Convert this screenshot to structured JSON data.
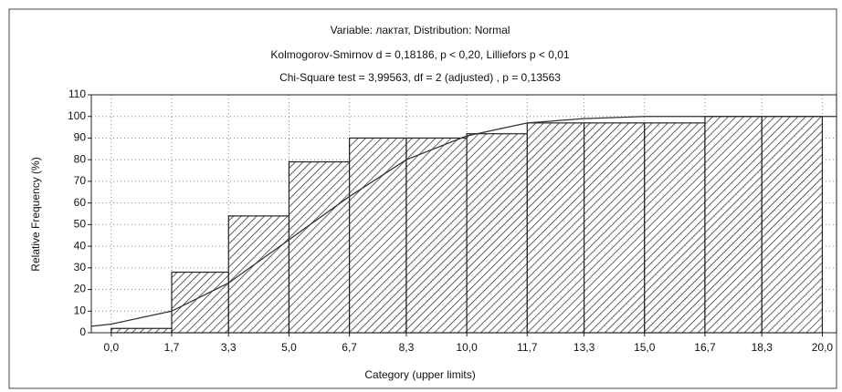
{
  "chart_data": {
    "type": "histogram",
    "title": [
      "Variable: лактат, Distribution: Normal",
      "Kolmogorov-Smirnov d = 0,18186, p < 0,20, Lilliefors p < 0,01",
      "Chi-Square test = 3,99563, df = 2 (adjusted) , p = 0,13563"
    ],
    "xlabel": "Category (upper limits)",
    "ylabel": "Relative Frequency (%)",
    "bins": [
      0,
      1.7,
      3.3,
      5,
      6.7,
      8.3,
      10,
      11.7,
      13.3,
      15,
      16.7,
      18.3,
      20
    ],
    "values": [
      2,
      28,
      54,
      79,
      90,
      90,
      92,
      97,
      97,
      97,
      100,
      100
    ],
    "color": "#222222",
    "curve": {
      "x": [
        -0.56,
        0,
        1.7,
        3.3,
        5,
        6.7,
        8.3,
        10,
        11.7,
        13.3,
        15,
        20.4
      ],
      "values": [
        3,
        4,
        10,
        23,
        43,
        63,
        80,
        91,
        97,
        99,
        100,
        100
      ],
      "color": "#333333"
    },
    "xlim": [
      -0.56,
      20.4
    ],
    "xticks": [
      {
        "value": 0,
        "label": "0,0"
      },
      {
        "value": 1.7,
        "label": "1,7"
      },
      {
        "value": 3.3,
        "label": "3,3"
      },
      {
        "value": 5,
        "label": "5,0"
      },
      {
        "value": 6.7,
        "label": "6,7"
      },
      {
        "value": 8.3,
        "label": "8,3"
      },
      {
        "value": 10,
        "label": "10,0"
      },
      {
        "value": 11.7,
        "label": "11,7"
      },
      {
        "value": 13.3,
        "label": "13,3"
      },
      {
        "value": 15,
        "label": "15,0"
      },
      {
        "value": 16.7,
        "label": "16,7"
      },
      {
        "value": 18.3,
        "label": "18,3"
      },
      {
        "value": 20,
        "label": "20,0"
      }
    ],
    "ylim": [
      0,
      110
    ],
    "yticks": [
      0,
      10,
      20,
      30,
      40,
      50,
      60,
      70,
      80,
      90,
      100,
      110
    ],
    "grid": true
  }
}
